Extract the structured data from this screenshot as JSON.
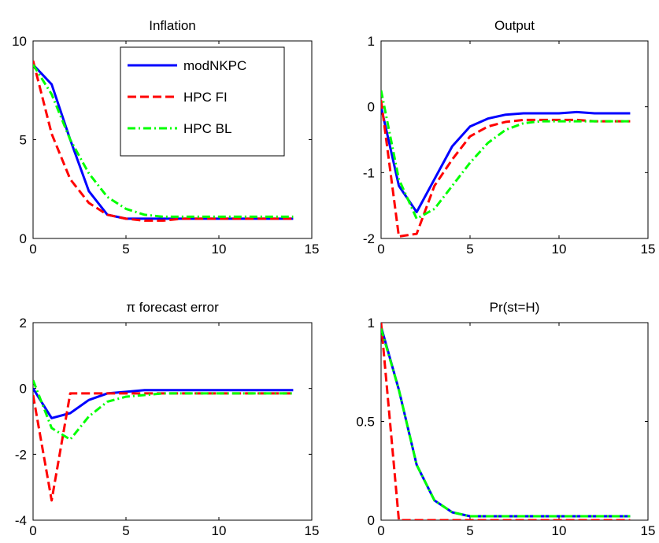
{
  "chart_data": [
    {
      "type": "line",
      "title": "Inflation",
      "xlim": [
        0,
        15
      ],
      "ylim": [
        0,
        10
      ],
      "xticks": [
        0,
        5,
        10,
        15
      ],
      "yticks": [
        0,
        5,
        10
      ],
      "xtick_labels": [
        "0",
        "5",
        "10",
        "15"
      ],
      "ytick_labels": [
        "0",
        "5",
        "10"
      ],
      "legend_position": "top-right",
      "x": [
        0,
        1,
        2,
        3,
        4,
        5,
        6,
        7,
        8,
        9,
        10,
        11,
        12,
        13,
        14
      ],
      "series": [
        {
          "name": "modNKPC",
          "color": "#0000ff",
          "style": "solid",
          "values": [
            8.8,
            7.8,
            5.0,
            2.4,
            1.2,
            1.0,
            1.0,
            1.0,
            1.0,
            1.0,
            1.0,
            1.0,
            1.0,
            1.0,
            1.0
          ]
        },
        {
          "name": "HPC FI",
          "color": "#ff0000",
          "style": "dashed",
          "values": [
            9.0,
            5.3,
            3.0,
            1.8,
            1.2,
            1.0,
            0.9,
            0.9,
            1.0,
            1.0,
            1.0,
            1.0,
            1.0,
            1.0,
            1.0
          ]
        },
        {
          "name": "HPC BL",
          "color": "#00ff00",
          "style": "dashdot",
          "values": [
            8.8,
            7.3,
            5.0,
            3.3,
            2.1,
            1.5,
            1.2,
            1.1,
            1.1,
            1.1,
            1.1,
            1.1,
            1.1,
            1.1,
            1.1
          ]
        }
      ]
    },
    {
      "type": "line",
      "title": "Output",
      "xlim": [
        0,
        15
      ],
      "ylim": [
        -2,
        1
      ],
      "xticks": [
        0,
        5,
        10,
        15
      ],
      "yticks": [
        -2,
        -1,
        0,
        1
      ],
      "xtick_labels": [
        "0",
        "5",
        "10",
        "15"
      ],
      "ytick_labels": [
        "-2",
        "-1",
        "0",
        "1"
      ],
      "x": [
        0,
        1,
        2,
        3,
        4,
        5,
        6,
        7,
        8,
        9,
        10,
        11,
        12,
        13,
        14
      ],
      "series": [
        {
          "name": "modNKPC",
          "color": "#0000ff",
          "style": "solid",
          "values": [
            0.0,
            -1.2,
            -1.6,
            -1.1,
            -0.6,
            -0.3,
            -0.18,
            -0.12,
            -0.1,
            -0.1,
            -0.1,
            -0.08,
            -0.1,
            -0.1,
            -0.1
          ]
        },
        {
          "name": "HPC FI",
          "color": "#ff0000",
          "style": "dashed",
          "values": [
            0.1,
            -1.97,
            -1.93,
            -1.2,
            -0.8,
            -0.45,
            -0.3,
            -0.23,
            -0.2,
            -0.2,
            -0.2,
            -0.2,
            -0.22,
            -0.22,
            -0.22
          ]
        },
        {
          "name": "HPC BL",
          "color": "#00ff00",
          "style": "dashdot",
          "values": [
            0.25,
            -1.1,
            -1.7,
            -1.55,
            -1.2,
            -0.85,
            -0.55,
            -0.35,
            -0.25,
            -0.22,
            -0.22,
            -0.22,
            -0.22,
            -0.22,
            -0.22
          ]
        }
      ]
    },
    {
      "type": "line",
      "title": "π forecast error",
      "xlim": [
        0,
        15
      ],
      "ylim": [
        -4,
        2
      ],
      "xticks": [
        0,
        5,
        10,
        15
      ],
      "yticks": [
        -4,
        -2,
        0,
        2
      ],
      "xtick_labels": [
        "0",
        "5",
        "10",
        "15"
      ],
      "ytick_labels": [
        "-4",
        "-2",
        "0",
        "2"
      ],
      "x": [
        0,
        1,
        2,
        3,
        4,
        5,
        6,
        7,
        8,
        9,
        10,
        11,
        12,
        13,
        14
      ],
      "series": [
        {
          "name": "modNKPC",
          "color": "#0000ff",
          "style": "solid",
          "values": [
            0.0,
            -0.9,
            -0.75,
            -0.35,
            -0.15,
            -0.1,
            -0.05,
            -0.05,
            -0.05,
            -0.05,
            -0.05,
            -0.05,
            -0.05,
            -0.05,
            -0.05
          ]
        },
        {
          "name": "HPC FI",
          "color": "#ff0000",
          "style": "dashed",
          "values": [
            -0.2,
            -3.4,
            -0.15,
            -0.15,
            -0.15,
            -0.15,
            -0.15,
            -0.15,
            -0.15,
            -0.15,
            -0.15,
            -0.15,
            -0.15,
            -0.15,
            -0.15
          ]
        },
        {
          "name": "HPC BL",
          "color": "#00ff00",
          "style": "dashdot",
          "values": [
            0.25,
            -1.2,
            -1.55,
            -0.85,
            -0.4,
            -0.25,
            -0.2,
            -0.15,
            -0.15,
            -0.15,
            -0.15,
            -0.15,
            -0.15,
            -0.15,
            -0.15
          ]
        }
      ]
    },
    {
      "type": "line",
      "title": "Pr(st=H)",
      "xlim": [
        0,
        15
      ],
      "ylim": [
        0,
        1
      ],
      "xticks": [
        0,
        5,
        10,
        15
      ],
      "yticks": [
        0,
        0.5,
        1
      ],
      "xtick_labels": [
        "0",
        "5",
        "10",
        "15"
      ],
      "ytick_labels": [
        "0",
        "0.5",
        "1"
      ],
      "x": [
        0,
        1,
        2,
        3,
        4,
        5,
        6,
        7,
        8,
        9,
        10,
        11,
        12,
        13,
        14
      ],
      "series": [
        {
          "name": "modNKPC",
          "color": "#0000ff",
          "style": "solid",
          "values": [
            0.98,
            0.66,
            0.28,
            0.1,
            0.04,
            0.02,
            0.02,
            0.02,
            0.02,
            0.02,
            0.02,
            0.02,
            0.02,
            0.02,
            0.02
          ]
        },
        {
          "name": "HPC FI",
          "color": "#ff0000",
          "style": "dashed",
          "values": [
            1.0,
            0.0,
            0.0,
            0.0,
            0.0,
            0.0,
            0.0,
            0.0,
            0.0,
            0.0,
            0.0,
            0.0,
            0.0,
            0.0,
            0.0
          ]
        },
        {
          "name": "HPC BL",
          "color": "#00ff00",
          "style": "dashdot",
          "values": [
            0.97,
            0.66,
            0.28,
            0.1,
            0.04,
            0.02,
            0.02,
            0.02,
            0.02,
            0.02,
            0.02,
            0.02,
            0.02,
            0.02,
            0.02
          ]
        }
      ]
    }
  ]
}
